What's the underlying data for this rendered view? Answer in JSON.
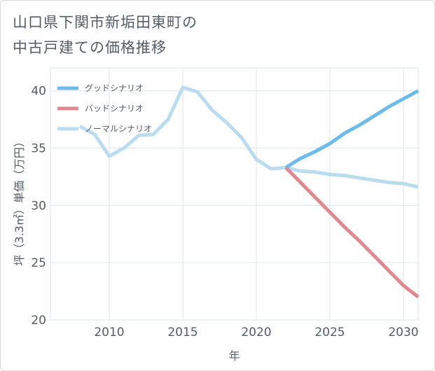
{
  "title": {
    "line1": "山口県下関市新垢田東町の",
    "line2": "中古戸建ての価格推移"
  },
  "chart_data": {
    "type": "line",
    "title": "山口県下関市新垢田東町の中古戸建ての価格推移",
    "xlabel": "年",
    "ylabel": "坪（3.3㎡）単価（万円）",
    "xlim": [
      2006,
      2031
    ],
    "ylim": [
      20,
      42
    ],
    "xticks": [
      2010,
      2015,
      2020,
      2025,
      2030
    ],
    "yticks": [
      20,
      25,
      30,
      35,
      40
    ],
    "grid": true,
    "legend_position": "top-left",
    "series": [
      {
        "name": "グッドシナリオ",
        "color": "#6bbcec",
        "x": [
          2022,
          2023,
          2024,
          2025,
          2026,
          2027,
          2028,
          2029,
          2030,
          2031
        ],
        "y": [
          33.3,
          34.1,
          34.7,
          35.4,
          36.3,
          37.0,
          37.8,
          38.6,
          39.3,
          40.0
        ]
      },
      {
        "name": "バッドシナリオ",
        "color": "#e08891",
        "x": [
          2022,
          2023,
          2024,
          2025,
          2026,
          2027,
          2028,
          2029,
          2030,
          2031
        ],
        "y": [
          33.3,
          32.0,
          30.7,
          29.4,
          28.1,
          26.9,
          25.6,
          24.3,
          23.0,
          22.0
        ]
      },
      {
        "name": "ノーマルシナリオ",
        "color": "#b9dcef",
        "x": [
          2008,
          2009,
          2010,
          2011,
          2012,
          2013,
          2014,
          2015,
          2016,
          2017,
          2018,
          2019,
          2020,
          2021,
          2022,
          2023,
          2024,
          2025,
          2026,
          2027,
          2028,
          2029,
          2030,
          2031
        ],
        "y": [
          36.9,
          36.2,
          34.3,
          35.0,
          36.1,
          36.2,
          37.5,
          40.3,
          39.9,
          38.3,
          37.2,
          35.9,
          34.0,
          33.2,
          33.3,
          33.0,
          32.9,
          32.7,
          32.6,
          32.4,
          32.2,
          32.0,
          31.9,
          31.6
        ]
      }
    ]
  }
}
